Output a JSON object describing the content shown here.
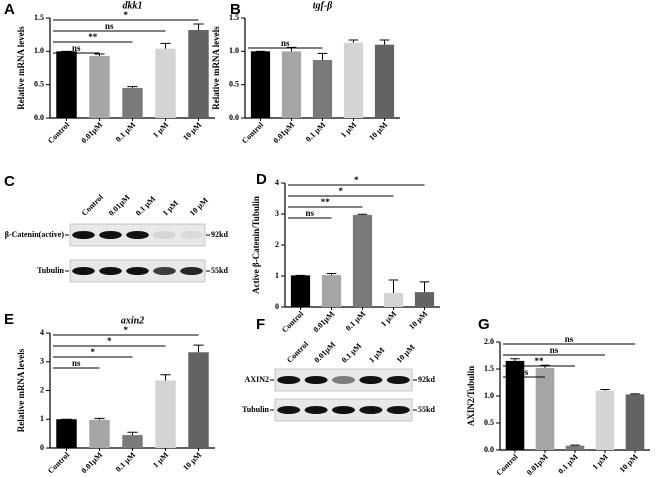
{
  "panel_labels": [
    "A",
    "B",
    "C",
    "D",
    "E",
    "F",
    "G"
  ],
  "chart_data": [
    {
      "type": "bar",
      "title": "dkk1",
      "y_label": "Relative mRNA levels",
      "categories": [
        "Control",
        "0.01μM",
        "0.1 μM",
        "1 μM",
        "10 μM"
      ],
      "values": [
        1.0,
        0.93,
        0.45,
        1.04,
        1.32
      ],
      "errors": [
        0,
        0.03,
        0.02,
        0.08,
        0.09
      ],
      "colors": [
        "#000000",
        "#a6a6a6",
        "#7a7a7a",
        "#d4d4d4",
        "#636363"
      ],
      "ylim": [
        0,
        1.5
      ],
      "yticks": [
        {
          "value": 0,
          "label": "0.0"
        },
        0.5,
        {
          "value": 1,
          "label": "1.0"
        },
        1.5
      ],
      "annotations": [
        {
          "text": "ns",
          "to": "0.01μM"
        },
        {
          "text": "**",
          "to": "0.1 μM"
        },
        {
          "text": "ns",
          "to": "1 μM"
        },
        {
          "text": "*",
          "to": "10 μM"
        }
      ]
    },
    {
      "type": "bar",
      "title": "tgf-β",
      "y_label": "Relative mRNA levels",
      "categories": [
        "Control",
        "0.01μM",
        "0.1 μM",
        "1 μM",
        "10 μM"
      ],
      "values": [
        1.0,
        1.0,
        0.87,
        1.13,
        1.1
      ],
      "errors": [
        0,
        0.06,
        0.1,
        0.04,
        0.07
      ],
      "colors": [
        "#000000",
        "#a6a6a6",
        "#7a7a7a",
        "#d4d4d4",
        "#636363"
      ],
      "ylim": [
        0,
        1.5
      ],
      "yticks": [
        {
          "value": 0,
          "label": "0.0"
        },
        0.5,
        {
          "value": 1,
          "label": "1.0"
        },
        1.5
      ],
      "annotations": [
        {
          "text": "ns",
          "to": "0.1 μM"
        }
      ]
    },
    {
      "type": "bar",
      "y_label": "Active β-Catenin/Tubulin",
      "categories": [
        "Control",
        "0.01μM",
        "0.1 μM",
        "1 μM",
        "10 μM"
      ],
      "values": [
        1.02,
        1.03,
        2.97,
        0.45,
        0.48
      ],
      "errors": [
        0,
        0.05,
        0.02,
        0.42,
        0.33
      ],
      "colors": [
        "#000000",
        "#a6a6a6",
        "#7a7a7a",
        "#d4d4d4",
        "#636363"
      ],
      "ylim": [
        0,
        4
      ],
      "yticks": [
        0,
        1,
        2,
        3,
        4
      ],
      "annotations": [
        {
          "text": "ns",
          "to": "0.01μM"
        },
        {
          "text": "**",
          "to": "0.1 μM"
        },
        {
          "text": "*",
          "to": "1 μM"
        },
        {
          "text": "*",
          "to": "10 μM"
        }
      ]
    },
    {
      "type": "bar",
      "title": "axin2",
      "y_label": "Relative mRNA levels",
      "categories": [
        "Control",
        "0.01μM",
        "0.1 μM",
        "1 μM",
        "10 μM"
      ],
      "values": [
        1.0,
        0.98,
        0.45,
        2.35,
        3.33
      ],
      "errors": [
        0,
        0.05,
        0.1,
        0.2,
        0.25
      ],
      "colors": [
        "#000000",
        "#a6a6a6",
        "#7a7a7a",
        "#d4d4d4",
        "#636363"
      ],
      "ylim": [
        0,
        4
      ],
      "yticks": [
        0,
        1,
        2,
        3,
        4
      ],
      "annotations": [
        {
          "text": "ns",
          "to": "0.01μM"
        },
        {
          "text": "*",
          "to": "0.1 μM"
        },
        {
          "text": "*",
          "to": "1 μM"
        },
        {
          "text": "*",
          "to": "10 μM"
        }
      ]
    },
    {
      "type": "bar",
      "y_label": "AXIN2/Tubulin",
      "categories": [
        "Control",
        "0.01μM",
        "0.1 μM",
        "1 μM",
        "10 μM"
      ],
      "values": [
        1.65,
        1.52,
        0.08,
        1.1,
        1.03
      ],
      "errors": [
        0.04,
        0.05,
        0.01,
        0.02,
        0.01
      ],
      "colors": [
        "#000000",
        "#a6a6a6",
        "#7a7a7a",
        "#d4d4d4",
        "#636363"
      ],
      "ylim": [
        0,
        2
      ],
      "yticks": [
        {
          "value": 0,
          "label": "0.0"
        },
        0.5,
        {
          "value": 1,
          "label": "1.0"
        },
        1.5,
        {
          "value": 2,
          "label": "2.0"
        }
      ],
      "annotations": [
        {
          "text": "ns",
          "to": "0.01μM"
        },
        {
          "text": "**",
          "to": "0.1 μM"
        },
        {
          "text": "ns",
          "to": "1 μM"
        },
        {
          "text": "ns",
          "to": "10 μM"
        }
      ]
    }
  ],
  "blots": [
    {
      "lanes": [
        "Control",
        "0.01μM",
        "0.1 μM",
        "1 μM",
        "10 μM"
      ],
      "rows": [
        {
          "name": "β-Catenin(active)",
          "size": "92kd"
        },
        {
          "name": "Tubulin",
          "size": "55kd"
        }
      ]
    },
    {
      "lanes": [
        "Control",
        "0.01μM",
        "0.1 μM",
        "1 μM",
        "10 μM"
      ],
      "rows": [
        {
          "name": "AXIN2",
          "size": "92kd"
        },
        {
          "name": "Tubulin",
          "size": "55kd"
        }
      ]
    }
  ]
}
